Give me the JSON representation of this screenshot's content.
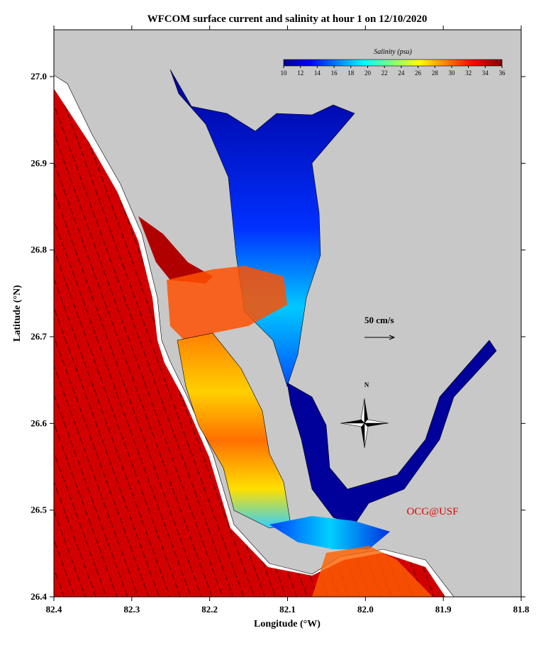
{
  "chart_data": {
    "type": "map",
    "title": "WFCOM surface current and salinity at hour 1 on 12/10/2020",
    "x_label": "Longitude (°W)",
    "y_label": "Latitude (°N)",
    "xlim": [
      82.4,
      81.8
    ],
    "ylim": [
      26.4,
      27.054
    ],
    "xticks": [
      82.4,
      82.3,
      82.2,
      82.1,
      {
        "value": 82,
        "label": "82.0"
      },
      81.9,
      81.8
    ],
    "yticks": [
      26.4,
      26.5,
      26.6,
      26.7,
      26.8,
      26.9,
      {
        "value": 27,
        "label": "27.0"
      }
    ],
    "colorbar": {
      "label": "Salinity (psu)",
      "lim": [
        10,
        36
      ],
      "ticks": [
        10,
        12,
        14,
        16,
        18,
        20,
        22,
        24,
        26,
        28,
        30,
        32,
        34,
        36
      ]
    },
    "annotations": [
      "50 cm/s",
      "N",
      "OCG@USF"
    ]
  }
}
